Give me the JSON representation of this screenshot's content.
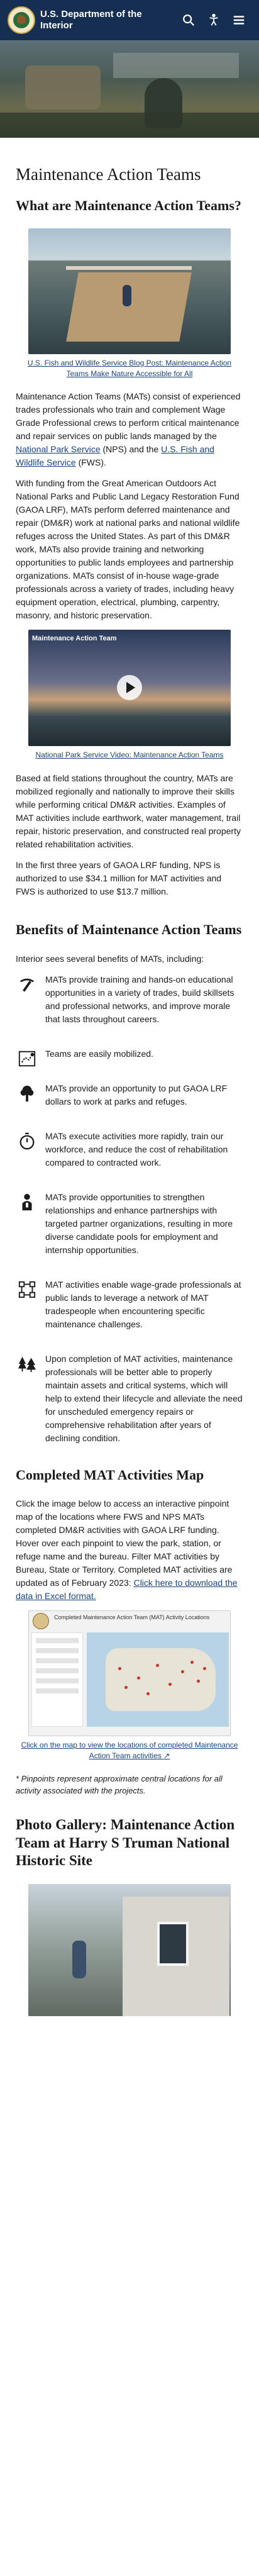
{
  "header": {
    "title_line1": "U.S. Department of the",
    "title_line2": "Interior",
    "search_icon": "search-icon",
    "accessibility_icon": "accessibility-icon",
    "menu_icon": "hamburger-menu-icon",
    "bg_color": "#162e51"
  },
  "page": {
    "title": "Maintenance Action Teams"
  },
  "intro": {
    "heading": "What are Maintenance Action Teams?",
    "figure1_caption": "U.S. Fish and Wildlife Service Blog Post: Maintenance Action Teams Make Nature Accessible for All",
    "p1_a": "Maintenance Action Teams (MATs) consist of experienced trades professionals who train and complement Wage Grade Professional crews to perform critical maintenance and repair services on public lands managed by the ",
    "p1_link1": "National Park Service",
    "p1_b": " (NPS) and the ",
    "p1_link2": "U.S. Fish and Wildlife Service",
    "p1_c": " (FWS).",
    "p2": "With funding from the Great American Outdoors Act National Parks and Public Land Legacy Restoration Fund (GAOA LRF), MATs perform deferred maintenance and repair (DM&R) work at national parks and national wildlife refuges across the United States. As part of this DM&R work, MATs also provide training and networking opportunities to public lands employees and partnership organizations. MATs consist of in-house wage-grade professionals across a variety of trades, including heavy equipment operation, electrical, plumbing, carpentry, masonry, and historic preservation.",
    "video_title": "Maintenance Action Team",
    "figure2_caption": "National Park Service Video: Maintenance Action Teams",
    "p3": "Based at field stations throughout the country, MATs are mobilized regionally and nationally to improve their skills while performing critical DM&R activities. Examples of MAT activities include earthwork, water management, trail repair, historic preservation, and constructed real property related rehabilitation activities.",
    "p4": "In the first three years of GAOA LRF funding, NPS is authorized to use $34.1 million for MAT activities and FWS is authorized to use $13.7 million."
  },
  "benefits": {
    "heading": "Benefits of Maintenance Action Teams",
    "intro": "Interior sees several benefits of MATs, including:",
    "items": [
      {
        "icon": "pickaxe-icon",
        "text": "MATs provide training and hands-on educational opportunities in a variety of trades, build skillsets and professional networks, and improve morale that lasts throughout careers."
      },
      {
        "icon": "map-route-icon",
        "text": "Teams are easily mobilized."
      },
      {
        "icon": "tree-icon",
        "text": "MATs provide an opportunity to put GAOA LRF dollars to work at parks and refuges."
      },
      {
        "icon": "stopwatch-icon",
        "text": "MATs execute activities more rapidly, train our workforce, and reduce the cost of rehabilitation compared to contracted work."
      },
      {
        "icon": "people-icon",
        "text": "MATs provide opportunities to strengthen relationships and enhance partnerships with targeted partner organizations, resulting in more diverse candidate pools for employment and internship opportunities."
      },
      {
        "icon": "network-icon",
        "text": "MAT activities enable wage-grade professionals at public lands to leverage a network of MAT tradespeople when encountering specific maintenance challenges."
      },
      {
        "icon": "forest-icon",
        "text": "Upon completion of MAT activities, maintenance professionals will be better able to properly maintain assets and critical systems, which will help to extend their lifecycle and alleviate the need for unscheduled emergency repairs or comprehensive rehabilitation after years of declining condition."
      }
    ]
  },
  "map_section": {
    "heading": "Completed MAT Activities Map",
    "p_a": "Click the image below to access an interactive pinpoint map of the locations where FWS and NPS MATs completed DM&R activities with GAOA LRF funding. Hover over each pinpoint to view the park, station, or refuge name and the bureau. Filter MAT activities by Bureau, State or Territory. Completed MAT activities are updated as of February 2023: ",
    "p_link": "Click here to download the data in Excel format.",
    "map_header": "Completed Maintenance Action Team (MAT) Activity Locations",
    "caption": "Click on the map to view the locations of completed Maintenance Action Team activities",
    "external_icon": "external-link-icon",
    "note": "* Pinpoints represent approximate central locations for all activity associated with the projects."
  },
  "gallery": {
    "heading": "Photo Gallery: Maintenance Action Team at Harry S Truman National Historic Site"
  }
}
